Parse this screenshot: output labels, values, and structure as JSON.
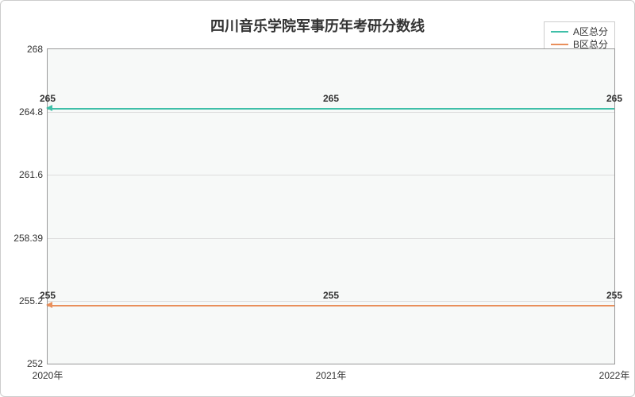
{
  "chart": {
    "type": "line",
    "title": "四川音乐学院军事历年考研分数线",
    "title_fontsize": 18,
    "title_color": "#333333",
    "background_color": "#ffffff",
    "plot_background": "#f7f9f8",
    "border_color": "#cccccc",
    "grid_color": "#dddddd",
    "axis_color": "#999999",
    "tick_fontsize": 12,
    "tick_color": "#333333",
    "label_fontsize": 12,
    "label_color": "#333333",
    "line_width": 2,
    "ylim": [
      252,
      268
    ],
    "yticks": [
      252,
      255.2,
      258.39,
      261.6,
      264.8,
      268
    ],
    "ytick_labels": [
      "252",
      "255.2",
      "258.39",
      "261.6",
      "264.8",
      "268"
    ],
    "x_categories": [
      "2020年",
      "2021年",
      "2022年"
    ],
    "legend": {
      "position": "top-right",
      "border_color": "#cccccc",
      "items": [
        {
          "label": "A区总分",
          "color": "#3fbfa8"
        },
        {
          "label": "B区总分",
          "color": "#e98f5b"
        }
      ]
    },
    "series": [
      {
        "name": "A区总分",
        "color": "#3fbfa8",
        "values": [
          265,
          265,
          265
        ],
        "labels": [
          "265",
          "265",
          "265"
        ]
      },
      {
        "name": "B区总分",
        "color": "#e98f5b",
        "values": [
          255,
          255,
          255
        ],
        "labels": [
          "255",
          "255",
          "255"
        ]
      }
    ]
  }
}
